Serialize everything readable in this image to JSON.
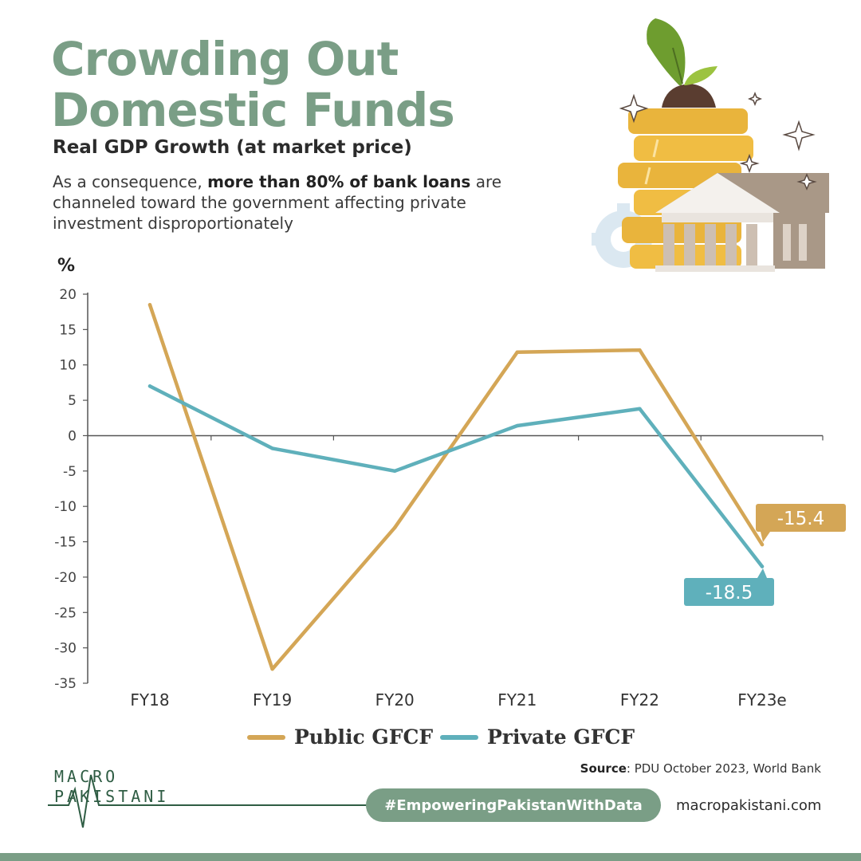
{
  "header": {
    "title_line1": "Crowding Out",
    "title_line2": "Domestic Funds",
    "subtitle": "Real GDP Growth (at market price)",
    "desc_pre": "As a consequence, ",
    "desc_bold": "more than 80% of bank loans",
    "desc_post": " are channeled toward the government affecting private investment disproportionately"
  },
  "illustration": {
    "icons": [
      "plant-sprout-icon",
      "coin-stack-icon",
      "bank-building-icon",
      "gear-icon",
      "sparkle-icon"
    ]
  },
  "chart_data": {
    "type": "line",
    "title": "",
    "xlabel": "",
    "ylabel": "%",
    "categories": [
      "FY18",
      "FY19",
      "FY20",
      "FY21",
      "FY22",
      "FY23e"
    ],
    "ylim": [
      -35,
      20
    ],
    "yticks": [
      20,
      15,
      10,
      5,
      0,
      -5,
      -10,
      -15,
      -20,
      -25,
      -30,
      -35
    ],
    "series": [
      {
        "name": "Public GFCF",
        "color": "#d4a656",
        "values": [
          18.5,
          -33,
          -13,
          11.8,
          12.1,
          -15.4
        ],
        "end_label": "-15.4"
      },
      {
        "name": "Private GFCF",
        "color": "#5fb0bb",
        "values": [
          7,
          -1.8,
          -5,
          1.4,
          3.8,
          -18.5
        ],
        "end_label": "-18.5"
      }
    ],
    "grid": false,
    "legend": "bottom-center"
  },
  "footer": {
    "source_label": "Source",
    "source_text": ":  PDU October 2023, World Bank",
    "logo_line1": "MACRO",
    "logo_line2": "PAKISTANI",
    "hashtag": "#EmpoweringPakistanWithData",
    "website": "macropakistani.com",
    "accent_color": "#7a9e86"
  }
}
